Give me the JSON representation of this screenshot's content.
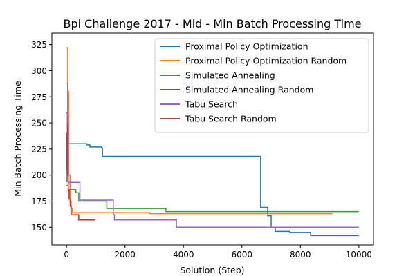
{
  "chart_data": {
    "type": "line",
    "title": "Bpi Challenge 2017 - Mid - Min Batch Processing Time",
    "xlabel": "Solution (Step)",
    "ylabel": "Min Batch Processing Time",
    "xlim": [
      -500,
      10500
    ],
    "ylim": [
      133,
      336
    ],
    "xticks": [
      0,
      2000,
      4000,
      6000,
      8000,
      10000
    ],
    "yticks": [
      150,
      175,
      200,
      225,
      250,
      275,
      300,
      325
    ],
    "grid": false,
    "legend_position": "top-right",
    "series": [
      {
        "name": "Proximal Policy Optimization",
        "color": "#1f77b4",
        "step": true,
        "points": [
          [
            0,
            207
          ],
          [
            20,
            230
          ],
          [
            700,
            229
          ],
          [
            800,
            227
          ],
          [
            1200,
            226
          ],
          [
            1230,
            218
          ],
          [
            6620,
            218
          ],
          [
            6640,
            169
          ],
          [
            6860,
            169
          ],
          [
            6880,
            161
          ],
          [
            6980,
            161
          ],
          [
            7000,
            150
          ],
          [
            7120,
            150
          ],
          [
            7140,
            146
          ],
          [
            7620,
            146
          ],
          [
            7640,
            145
          ],
          [
            8330,
            145
          ],
          [
            8350,
            142
          ],
          [
            10000,
            142
          ]
        ]
      },
      {
        "name": "Proximal Policy Optimization Random",
        "color": "#ff7f0e",
        "step": true,
        "points": [
          [
            0,
            322
          ],
          [
            40,
            280
          ],
          [
            80,
            200
          ],
          [
            120,
            175
          ],
          [
            160,
            168
          ],
          [
            200,
            164
          ],
          [
            2830,
            164
          ],
          [
            2850,
            163
          ],
          [
            9100,
            163
          ]
        ]
      },
      {
        "name": "Simulated Annealing",
        "color": "#2ca02c",
        "step": true,
        "points": [
          [
            0,
            190
          ],
          [
            60,
            186
          ],
          [
            300,
            186
          ],
          [
            320,
            183
          ],
          [
            400,
            183
          ],
          [
            420,
            175
          ],
          [
            1360,
            175
          ],
          [
            1380,
            168
          ],
          [
            3380,
            168
          ],
          [
            3400,
            165
          ],
          [
            10000,
            165
          ]
        ]
      },
      {
        "name": "Simulated Annealing Random",
        "color": "#d62728",
        "step": true,
        "points": [
          [
            0,
            260
          ],
          [
            30,
            200
          ],
          [
            60,
            185
          ],
          [
            90,
            177
          ],
          [
            130,
            170
          ],
          [
            160,
            162
          ],
          [
            400,
            162
          ],
          [
            420,
            157
          ],
          [
            980,
            157
          ]
        ]
      },
      {
        "name": "Tabu Search",
        "color": "#9467bd",
        "step": true,
        "points": [
          [
            0,
            288
          ],
          [
            40,
            250
          ],
          [
            60,
            193
          ],
          [
            440,
            193
          ],
          [
            460,
            176
          ],
          [
            1580,
            176
          ],
          [
            1600,
            162
          ],
          [
            1640,
            157
          ],
          [
            3740,
            157
          ],
          [
            3760,
            150
          ],
          [
            10000,
            150
          ]
        ]
      },
      {
        "name": "Tabu Search Random",
        "color": "#8c564b",
        "step": true,
        "points": [
          [
            0,
            240
          ],
          [
            10,
            205
          ],
          [
            20,
            193
          ]
        ]
      }
    ]
  }
}
